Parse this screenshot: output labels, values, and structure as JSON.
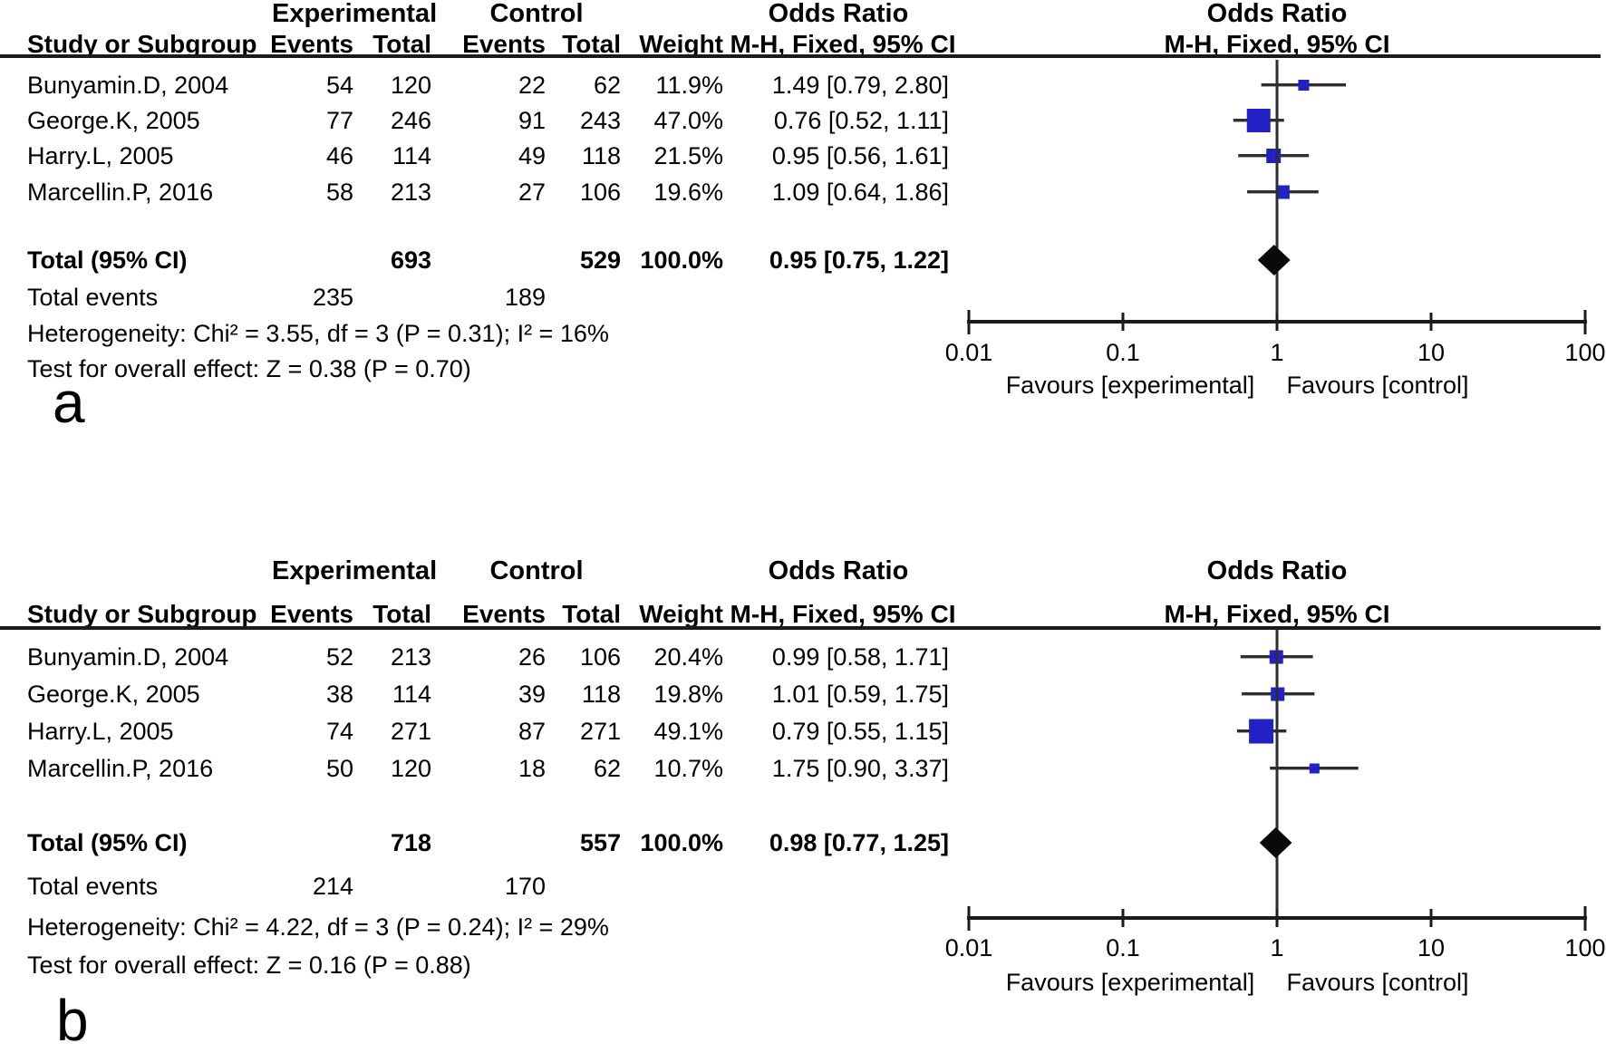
{
  "accent_colors": {
    "marker_blue": "#2121c6",
    "line_black": "#2e2e2e",
    "axis_black": "#1b1b1b"
  },
  "panels": [
    {
      "label": "a",
      "header": {
        "group_experimental": "Experimental",
        "group_control": "Control",
        "odds_ratio_text_col": "Odds Ratio",
        "odds_ratio_plot_col": "Odds Ratio",
        "study": "Study or Subgroup",
        "events_exp": "Events",
        "total_exp": "Total",
        "events_ctl": "Events",
        "total_ctl": "Total",
        "weight": "Weight",
        "mh_text_col": "M-H, Fixed, 95% CI",
        "mh_plot_col": "M-H, Fixed, 95% CI"
      },
      "rows": [
        {
          "study": "Bunyamin.D, 2004",
          "e_events": "54",
          "e_total": "120",
          "c_events": "22",
          "c_total": "62",
          "weight": "11.9%",
          "ci": "1.49 [0.79, 2.80]",
          "or": 1.49,
          "lo": 0.79,
          "hi": 2.8,
          "w": 11.9
        },
        {
          "study": "George.K, 2005",
          "e_events": "77",
          "e_total": "246",
          "c_events": "91",
          "c_total": "243",
          "weight": "47.0%",
          "ci": "0.76 [0.52, 1.11]",
          "or": 0.76,
          "lo": 0.52,
          "hi": 1.11,
          "w": 47.0
        },
        {
          "study": "Harry.L, 2005",
          "e_events": "46",
          "e_total": "114",
          "c_events": "49",
          "c_total": "118",
          "weight": "21.5%",
          "ci": "0.95 [0.56, 1.61]",
          "or": 0.95,
          "lo": 0.56,
          "hi": 1.61,
          "w": 21.5
        },
        {
          "study": "Marcellin.P, 2016",
          "e_events": "58",
          "e_total": "213",
          "c_events": "27",
          "c_total": "106",
          "weight": "19.6%",
          "ci": "1.09 [0.64, 1.86]",
          "or": 1.09,
          "lo": 0.64,
          "hi": 1.86,
          "w": 19.6
        }
      ],
      "total": {
        "label": "Total (95% CI)",
        "e_total": "693",
        "c_total": "529",
        "weight": "100.0%",
        "ci": "0.95 [0.75, 1.22]",
        "or": 0.95,
        "lo": 0.75,
        "hi": 1.22
      },
      "total_events": {
        "label": "Total events",
        "e": "235",
        "c": "189"
      },
      "heterogeneity": "Heterogeneity: Chi² = 3.55, df = 3 (P = 0.31); I² = 16%",
      "overall_effect": "Test for overall effect: Z = 0.38 (P = 0.70)",
      "axis": {
        "ticks": [
          "0.01",
          "0.1",
          "1",
          "10",
          "100"
        ],
        "favours_left": "Favours [experimental]",
        "favours_right": "Favours [control]"
      }
    },
    {
      "label": "b",
      "header": {
        "group_experimental": "Experimental",
        "group_control": "Control",
        "odds_ratio_text_col": "Odds Ratio",
        "odds_ratio_plot_col": "Odds Ratio",
        "study": "Study or Subgroup",
        "events_exp": "Events",
        "total_exp": "Total",
        "events_ctl": "Events",
        "total_ctl": "Total",
        "weight": "Weight",
        "mh_text_col": "M-H, Fixed, 95% CI",
        "mh_plot_col": "M-H, Fixed, 95% CI"
      },
      "rows": [
        {
          "study": "Bunyamin.D, 2004",
          "e_events": "52",
          "e_total": "213",
          "c_events": "26",
          "c_total": "106",
          "weight": "20.4%",
          "ci": "0.99 [0.58, 1.71]",
          "or": 0.99,
          "lo": 0.58,
          "hi": 1.71,
          "w": 20.4
        },
        {
          "study": "George.K, 2005",
          "e_events": "38",
          "e_total": "114",
          "c_events": "39",
          "c_total": "118",
          "weight": "19.8%",
          "ci": "1.01 [0.59, 1.75]",
          "or": 1.01,
          "lo": 0.59,
          "hi": 1.75,
          "w": 19.8
        },
        {
          "study": "Harry.L, 2005",
          "e_events": "74",
          "e_total": "271",
          "c_events": "87",
          "c_total": "271",
          "weight": "49.1%",
          "ci": "0.79 [0.55, 1.15]",
          "or": 0.79,
          "lo": 0.55,
          "hi": 1.15,
          "w": 49.1
        },
        {
          "study": "Marcellin.P, 2016",
          "e_events": "50",
          "e_total": "120",
          "c_events": "18",
          "c_total": "62",
          "weight": "10.7%",
          "ci": "1.75 [0.90, 3.37]",
          "or": 1.75,
          "lo": 0.9,
          "hi": 3.37,
          "w": 10.7
        }
      ],
      "total": {
        "label": "Total (95% CI)",
        "e_total": "718",
        "c_total": "557",
        "weight": "100.0%",
        "ci": "0.98 [0.77, 1.25]",
        "or": 0.98,
        "lo": 0.77,
        "hi": 1.25
      },
      "total_events": {
        "label": "Total events",
        "e": "214",
        "c": "170"
      },
      "heterogeneity": "Heterogeneity: Chi² = 4.22, df = 3 (P = 0.24); I² = 29%",
      "overall_effect": "Test for overall effect: Z = 0.16 (P = 0.88)",
      "axis": {
        "ticks": [
          "0.01",
          "0.1",
          "1",
          "10",
          "100"
        ],
        "favours_left": "Favours [experimental]",
        "favours_right": "Favours [control]"
      }
    }
  ],
  "chart_data": [
    {
      "type": "scatter",
      "subtype": "forest-plot",
      "title": "Odds Ratio  M-H, Fixed, 95% CI (panel a)",
      "x_scale": "log10",
      "xlim": [
        0.01,
        100
      ],
      "x_ticks": [
        0.01,
        0.1,
        1,
        10,
        100
      ],
      "xlabel_left": "Favours [experimental]",
      "xlabel_right": "Favours [control]",
      "studies": [
        "Bunyamin.D, 2004",
        "George.K, 2005",
        "Harry.L, 2005",
        "Marcellin.P, 2016"
      ],
      "odds_ratio": [
        1.49,
        0.76,
        0.95,
        1.09
      ],
      "ci_low": [
        0.79,
        0.52,
        0.56,
        0.64
      ],
      "ci_high": [
        2.8,
        1.11,
        1.61,
        1.86
      ],
      "weights_pct": [
        11.9,
        47.0,
        21.5,
        19.6
      ],
      "total": {
        "or": 0.95,
        "ci_low": 0.75,
        "ci_high": 1.22,
        "weight_pct": 100.0
      },
      "heterogeneity": {
        "chi2": 3.55,
        "df": 3,
        "p": 0.31,
        "i2_pct": 16
      },
      "overall_effect": {
        "z": 0.38,
        "p": 0.7
      }
    },
    {
      "type": "scatter",
      "subtype": "forest-plot",
      "title": "Odds Ratio  M-H, Fixed, 95% CI (panel b)",
      "x_scale": "log10",
      "xlim": [
        0.01,
        100
      ],
      "x_ticks": [
        0.01,
        0.1,
        1,
        10,
        100
      ],
      "xlabel_left": "Favours [experimental]",
      "xlabel_right": "Favours [control]",
      "studies": [
        "Bunyamin.D, 2004",
        "George.K, 2005",
        "Harry.L, 2005",
        "Marcellin.P, 2016"
      ],
      "odds_ratio": [
        0.99,
        1.01,
        0.79,
        1.75
      ],
      "ci_low": [
        0.58,
        0.59,
        0.55,
        0.9
      ],
      "ci_high": [
        1.71,
        1.75,
        1.15,
        3.37
      ],
      "weights_pct": [
        20.4,
        19.8,
        49.1,
        10.7
      ],
      "total": {
        "or": 0.98,
        "ci_low": 0.77,
        "ci_high": 1.25,
        "weight_pct": 100.0
      },
      "heterogeneity": {
        "chi2": 4.22,
        "df": 3,
        "p": 0.24,
        "i2_pct": 29
      },
      "overall_effect": {
        "z": 0.16,
        "p": 0.88
      }
    }
  ]
}
